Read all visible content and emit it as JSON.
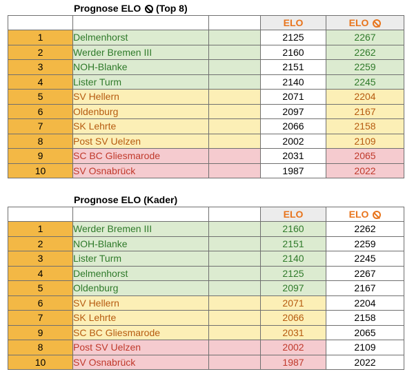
{
  "table1": {
    "title": "Prognose ELO",
    "title_suffix": "(Top 8)",
    "header_elo": "ELO",
    "header_elo_avg": "ELO",
    "rows": [
      {
        "rank": "1",
        "team": "Delmenhorst",
        "elo": "2125",
        "elo_avg": "2267",
        "tier": "green"
      },
      {
        "rank": "2",
        "team": "Werder Bremen III",
        "elo": "2160",
        "elo_avg": "2262",
        "tier": "green"
      },
      {
        "rank": "3",
        "team": "NOH-Blanke",
        "elo": "2151",
        "elo_avg": "2259",
        "tier": "green"
      },
      {
        "rank": "4",
        "team": "Lister Turm",
        "elo": "2140",
        "elo_avg": "2245",
        "tier": "green"
      },
      {
        "rank": "5",
        "team": "SV Hellern",
        "elo": "2071",
        "elo_avg": "2204",
        "tier": "yellow"
      },
      {
        "rank": "6",
        "team": "Oldenburg",
        "elo": "2097",
        "elo_avg": "2167",
        "tier": "yellow"
      },
      {
        "rank": "7",
        "team": "SK Lehrte",
        "elo": "2066",
        "elo_avg": "2158",
        "tier": "yellow"
      },
      {
        "rank": "8",
        "team": "Post SV Uelzen",
        "elo": "2002",
        "elo_avg": "2109",
        "tier": "yellow"
      },
      {
        "rank": "9",
        "team": "SC BC Gliesmarode",
        "elo": "2031",
        "elo_avg": "2065",
        "tier": "red"
      },
      {
        "rank": "10",
        "team": "SV Osnabrück",
        "elo": "1987",
        "elo_avg": "2022",
        "tier": "red"
      }
    ]
  },
  "table2": {
    "title": "Prognose ELO (Kader)",
    "header_elo": "ELO",
    "header_elo_avg": "ELO",
    "rows": [
      {
        "rank": "1",
        "team": "Werder Bremen III",
        "elo": "2160",
        "elo_avg": "2262",
        "tier": "green"
      },
      {
        "rank": "2",
        "team": "NOH-Blanke",
        "elo": "2151",
        "elo_avg": "2259",
        "tier": "green"
      },
      {
        "rank": "3",
        "team": "Lister Turm",
        "elo": "2140",
        "elo_avg": "2245",
        "tier": "green"
      },
      {
        "rank": "4",
        "team": "Delmenhorst",
        "elo": "2125",
        "elo_avg": "2267",
        "tier": "green"
      },
      {
        "rank": "5",
        "team": "Oldenburg",
        "elo": "2097",
        "elo_avg": "2167",
        "tier": "green"
      },
      {
        "rank": "6",
        "team": "SV Hellern",
        "elo": "2071",
        "elo_avg": "2204",
        "tier": "yellow"
      },
      {
        "rank": "7",
        "team": "SK Lehrte",
        "elo": "2066",
        "elo_avg": "2158",
        "tier": "yellow"
      },
      {
        "rank": "9",
        "team": "SC BC Gliesmarode",
        "elo": "2031",
        "elo_avg": "2065",
        "tier": "yellow"
      },
      {
        "rank": "8",
        "team": "Post SV Uelzen",
        "elo": "2002",
        "elo_avg": "2109",
        "tier": "red"
      },
      {
        "rank": "10",
        "team": "SV Osnabrück",
        "elo": "1987",
        "elo_avg": "2022",
        "tier": "red"
      }
    ]
  },
  "colors": {
    "rank_bg": "#f3b845",
    "green_bg": "#dcebd0",
    "yellow_bg": "#fcefb6",
    "red_bg": "#f5cbcf",
    "header_text": "#e8741c",
    "green_text": "#2f7a2a",
    "yellow_text": "#b65b10",
    "red_text": "#c0392b"
  },
  "icons": {
    "average_symbol": "no-entry-diameter-icon"
  }
}
